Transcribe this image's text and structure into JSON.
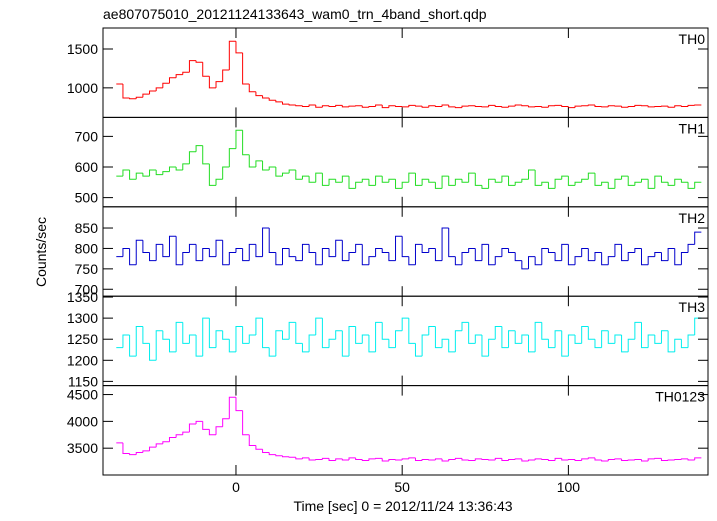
{
  "chart_data": {
    "type": "line",
    "title": "ae807075010_20121124133643_wam0_trn_4band_short.qdp",
    "xlabel": "Time [sec] 0 = 2012/11/24 13:36:43",
    "ylabel": "Counts/sec",
    "xlim": [
      -40,
      142
    ],
    "xticks": [
      0,
      50,
      100
    ],
    "x": [
      -35,
      -33,
      -31,
      -29,
      -27,
      -25,
      -23,
      -21,
      -19,
      -17,
      -15,
      -13,
      -11,
      -9,
      -7,
      -5,
      -3,
      -1,
      1,
      3,
      5,
      7,
      9,
      11,
      13,
      15,
      17,
      19,
      21,
      23,
      25,
      27,
      29,
      31,
      33,
      35,
      37,
      39,
      41,
      43,
      45,
      47,
      49,
      51,
      53,
      55,
      57,
      59,
      61,
      63,
      65,
      67,
      69,
      71,
      73,
      75,
      77,
      79,
      81,
      83,
      85,
      87,
      89,
      91,
      93,
      95,
      97,
      99,
      101,
      103,
      105,
      107,
      109,
      111,
      113,
      115,
      117,
      119,
      121,
      123,
      125,
      127,
      129,
      131,
      133,
      135,
      137,
      139
    ],
    "series": [
      {
        "name": "TH0",
        "color": "#ff0000",
        "ylim": [
          620,
          1770
        ],
        "yticks": [
          1000,
          1500
        ],
        "values": [
          1050,
          870,
          860,
          880,
          920,
          960,
          1000,
          1060,
          1130,
          1170,
          1200,
          1350,
          1330,
          1150,
          1000,
          1080,
          1230,
          1600,
          1450,
          1050,
          950,
          900,
          870,
          840,
          820,
          790,
          780,
          770,
          760,
          780,
          750,
          770,
          760,
          775,
          755,
          765,
          770,
          750,
          760,
          780,
          745,
          770,
          760,
          755,
          775,
          765,
          750,
          770,
          760,
          780,
          755,
          745,
          765,
          770,
          760,
          755,
          775,
          760,
          750,
          765,
          780,
          770,
          755,
          760,
          750,
          770,
          775,
          760,
          745,
          765,
          770,
          780,
          760,
          755,
          770,
          765,
          750,
          760,
          775,
          770,
          755,
          760,
          765,
          750,
          770,
          760,
          775,
          780
        ]
      },
      {
        "name": "TH1",
        "color": "#22dd22",
        "ylim": [
          470,
          762
        ],
        "yticks": [
          500,
          600,
          700
        ],
        "values": [
          570,
          590,
          560,
          580,
          570,
          590,
          575,
          585,
          600,
          590,
          610,
          650,
          670,
          610,
          540,
          560,
          600,
          660,
          720,
          640,
          600,
          620,
          590,
          600,
          570,
          580,
          590,
          560,
          570,
          550,
          580,
          540,
          560,
          550,
          570,
          530,
          550,
          560,
          540,
          570,
          550,
          560,
          530,
          550,
          580,
          540,
          560,
          550,
          530,
          570,
          540,
          560,
          550,
          580,
          540,
          530,
          560,
          550,
          570,
          540,
          550,
          560,
          590,
          540,
          550,
          530,
          560,
          570,
          540,
          550,
          560,
          580,
          540,
          550,
          530,
          560,
          570,
          540,
          550,
          560,
          530,
          570,
          550,
          540,
          560,
          550,
          530,
          550
        ]
      },
      {
        "name": "TH2",
        "color": "#0000cc",
        "ylim": [
          683,
          902
        ],
        "yticks": [
          700,
          750,
          800,
          850
        ],
        "values": [
          780,
          800,
          760,
          820,
          790,
          770,
          810,
          780,
          830,
          760,
          790,
          810,
          770,
          800,
          780,
          820,
          760,
          790,
          800,
          770,
          810,
          780,
          850,
          790,
          760,
          800,
          780,
          770,
          810,
          790,
          760,
          800,
          780,
          820,
          770,
          790,
          810,
          760,
          780,
          800,
          790,
          770,
          830,
          780,
          760,
          810,
          790,
          800,
          770,
          850,
          780,
          760,
          790,
          800,
          770,
          810,
          760,
          780,
          800,
          790,
          770,
          750,
          780,
          760,
          800,
          790,
          770,
          810,
          760,
          780,
          800,
          770,
          790,
          760,
          780,
          810,
          770,
          790,
          800,
          760,
          780,
          790,
          770,
          800,
          760,
          790,
          810,
          840
        ]
      },
      {
        "name": "TH3",
        "color": "#00eeee",
        "ylim": [
          1140,
          1352
        ],
        "yticks": [
          1150,
          1200,
          1250,
          1300,
          1350
        ],
        "values": [
          1230,
          1260,
          1210,
          1280,
          1240,
          1200,
          1270,
          1250,
          1220,
          1290,
          1240,
          1260,
          1210,
          1300,
          1230,
          1270,
          1250,
          1220,
          1280,
          1240,
          1260,
          1300,
          1230,
          1210,
          1270,
          1250,
          1290,
          1240,
          1220,
          1260,
          1300,
          1230,
          1250,
          1270,
          1210,
          1280,
          1240,
          1260,
          1220,
          1290,
          1250,
          1230,
          1270,
          1300,
          1240,
          1210,
          1260,
          1280,
          1230,
          1250,
          1220,
          1270,
          1290,
          1240,
          1260,
          1210,
          1250,
          1280,
          1230,
          1270,
          1240,
          1260,
          1220,
          1290,
          1250,
          1230,
          1270,
          1210,
          1260,
          1240,
          1280,
          1250,
          1230,
          1270,
          1240,
          1260,
          1220,
          1250,
          1290,
          1230,
          1260,
          1240,
          1270,
          1220,
          1250,
          1230,
          1260,
          1300
        ]
      },
      {
        "name": "TH0123",
        "color": "#ff00ff",
        "ylim": [
          3000,
          4667
        ],
        "yticks": [
          3500,
          4000,
          4500
        ],
        "values": [
          3600,
          3400,
          3380,
          3420,
          3450,
          3520,
          3580,
          3620,
          3700,
          3750,
          3800,
          3950,
          4000,
          3850,
          3750,
          3900,
          4050,
          4450,
          4200,
          3750,
          3550,
          3480,
          3420,
          3380,
          3360,
          3340,
          3330,
          3300,
          3320,
          3280,
          3290,
          3310,
          3270,
          3300,
          3280,
          3320,
          3290,
          3270,
          3300,
          3310,
          3260,
          3290,
          3280,
          3300,
          3320,
          3270,
          3290,
          3280,
          3300,
          3260,
          3290,
          3310,
          3280,
          3270,
          3300,
          3290,
          3280,
          3310,
          3270,
          3290,
          3300,
          3260,
          3280,
          3300,
          3290,
          3270,
          3310,
          3280,
          3290,
          3270,
          3300,
          3320,
          3280,
          3260,
          3290,
          3300,
          3270,
          3280,
          3290,
          3260,
          3300,
          3310,
          3270,
          3280,
          3290,
          3300,
          3280,
          3320
        ]
      }
    ]
  }
}
